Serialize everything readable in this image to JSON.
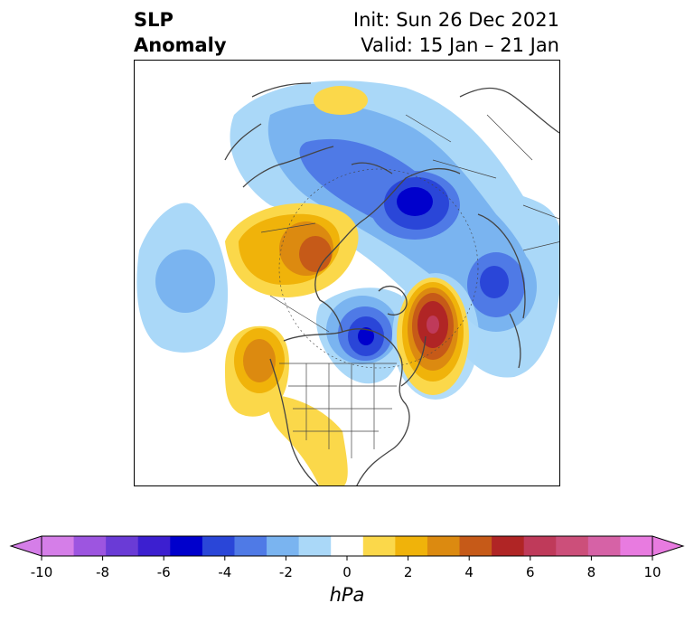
{
  "title": {
    "left_line1": "SLP",
    "left_line2": "Anomaly",
    "right_line1": "Init: Sun 26 Dec 2021",
    "right_line2": "Valid: 15 Jan – 21 Jan"
  },
  "colorbar": {
    "unit": "hPa",
    "ticks": [
      "-10",
      "-8",
      "-6",
      "-4",
      "-2",
      "0",
      "2",
      "4",
      "6",
      "8",
      "10"
    ],
    "colors": [
      "#d57ee8",
      "#9d55e0",
      "#6a3bd6",
      "#3c1fd0",
      "#0000cc",
      "#2a46d8",
      "#4f7ae6",
      "#7ab4f0",
      "#aad8f8",
      "#ffffff",
      "#fbd84a",
      "#f0b30a",
      "#dc8a10",
      "#c65a18",
      "#b02525",
      "#bf3a5a",
      "#cc4f7a",
      "#d662a6",
      "#e87be0"
    ],
    "extend_low_color": "#d57ee8",
    "extend_high_color": "#e87be0"
  },
  "map": {
    "projection": "north polar stereographic",
    "anomaly_features": [
      {
        "name": "negative-anomaly-central-arctic",
        "min_hpa": -6
      },
      {
        "name": "negative-anomaly-hudson-bay",
        "min_hpa": -6
      },
      {
        "name": "positive-anomaly-north-atlantic",
        "max_hpa": 7
      },
      {
        "name": "positive-anomaly-north-pacific",
        "max_hpa": 4
      },
      {
        "name": "positive-anomaly-west-coast-us",
        "max_hpa": 4
      },
      {
        "name": "negative-anomaly-north-pacific-west",
        "min_hpa": -3
      },
      {
        "name": "negative-anomaly-europe",
        "min_hpa": -5
      },
      {
        "name": "positive-anomaly-siberia-north",
        "max_hpa": 2
      }
    ]
  }
}
